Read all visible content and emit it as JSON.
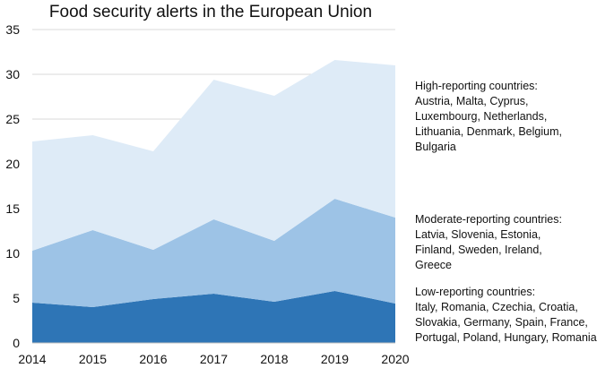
{
  "chart_data": {
    "type": "area",
    "stacked": true,
    "title": "Food security alerts in the European Union",
    "xlabel": "",
    "ylabel": "",
    "x": [
      2014,
      2015,
      2016,
      2017,
      2018,
      2019,
      2020
    ],
    "ylim": [
      0,
      35
    ],
    "yticks": [
      0,
      5,
      10,
      15,
      20,
      25,
      30,
      35
    ],
    "grid": "horizontal",
    "series": [
      {
        "name": "Low-reporting countries:",
        "countries": "Italy, Romania, Czechia, Croatia, Slovakia, Germany, Spain, France, Portugal, Poland, Hungary, Romania",
        "color": "#2e75b6",
        "values": [
          4.5,
          4.0,
          4.9,
          5.5,
          4.6,
          5.8,
          4.4
        ]
      },
      {
        "name": "Moderate-reporting countries:",
        "countries": "Latvia, Slovenia, Estonia, Finland, Sweden, Ireland, Greece",
        "color": "#9dc3e6",
        "values": [
          5.8,
          8.6,
          5.5,
          8.3,
          6.8,
          10.3,
          9.6
        ]
      },
      {
        "name": "High-reporting countries:",
        "countries": "Austria, Malta, Cyprus, Luxembourg, Netherlands, Lithuania, Denmark, Belgium, Bulgaria",
        "color": "#deebf7",
        "values": [
          12.2,
          10.6,
          11.0,
          15.6,
          16.2,
          15.5,
          17.0
        ]
      }
    ]
  },
  "legend": {
    "high": {
      "heading": "High-reporting countries:",
      "lines": [
        "Austria, Malta, Cyprus,",
        "Luxembourg, Netherlands,",
        "Lithuania, Denmark, Belgium,",
        "Bulgaria"
      ]
    },
    "moderate": {
      "heading": "Moderate-reporting countries:",
      "lines": [
        "Latvia, Slovenia, Estonia,",
        "Finland, Sweden, Ireland,",
        "Greece"
      ]
    },
    "low": {
      "heading": "Low-reporting countries:",
      "lines": [
        "Italy, Romania, Czechia, Croatia,",
        "Slovakia, Germany, Spain, France,",
        "Portugal, Poland, Hungary, Romania"
      ]
    }
  }
}
